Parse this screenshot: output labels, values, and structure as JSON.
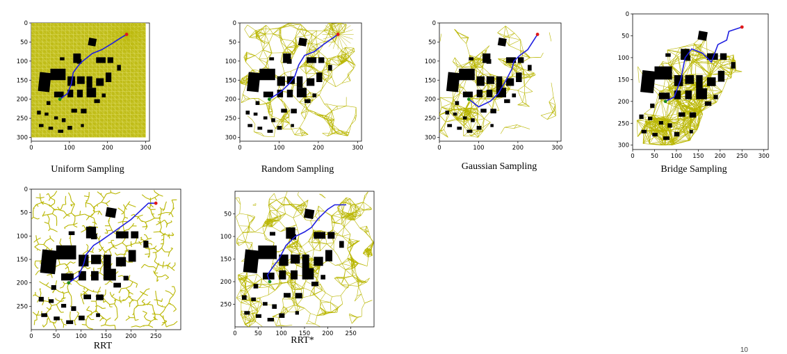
{
  "colors": {
    "roadmap": "#b9b600",
    "background_white": "#ffffff",
    "path": "#1f1fe0",
    "start": "#1a8a1a",
    "goal": "#e01a1a",
    "obstacle": "#000000"
  },
  "panels": [
    {
      "id": "uniform",
      "caption": "Uniform Sampling",
      "style": "uniform",
      "xticks": [
        "0",
        "100",
        "200",
        "300"
      ],
      "yticks": [
        "0",
        "50",
        "100",
        "150",
        "200",
        "250",
        "300"
      ],
      "has_path": true
    },
    {
      "id": "random",
      "caption": "Random Sampling",
      "style": "random",
      "xticks": [
        "0",
        "100",
        "200",
        "300"
      ],
      "yticks": [
        "0",
        "50",
        "100",
        "150",
        "200",
        "250",
        "300"
      ],
      "has_path": true
    },
    {
      "id": "gaussian",
      "caption": "Gaussian Sampling",
      "style": "gaussian",
      "xticks": [
        "0",
        "100",
        "200",
        "300"
      ],
      "yticks": [
        "0",
        "50",
        "100",
        "150",
        "200",
        "250",
        "300"
      ],
      "has_path": true
    },
    {
      "id": "bridge",
      "caption": "Bridge Sampling",
      "style": "bridge",
      "xticks": [
        "0",
        "50",
        "100",
        "150",
        "200",
        "250",
        "300"
      ],
      "yticks": [
        "0",
        "50",
        "100",
        "150",
        "200",
        "250",
        "300"
      ],
      "has_path": true
    },
    {
      "id": "rrt",
      "caption": "RRT",
      "style": "rrt",
      "xticks": [
        "0",
        "50",
        "100",
        "150",
        "200",
        "250"
      ],
      "yticks": [
        "0",
        "50",
        "100",
        "150",
        "200",
        "250"
      ],
      "has_path": true
    },
    {
      "id": "rrtstar",
      "caption": "RRT*",
      "style": "rrtstar",
      "xticks": [
        "0",
        "50",
        "100",
        "150",
        "200",
        "250"
      ],
      "yticks": [
        "50",
        "100",
        "150",
        "200",
        "250"
      ],
      "has_path": true
    }
  ],
  "page_number": "10"
}
